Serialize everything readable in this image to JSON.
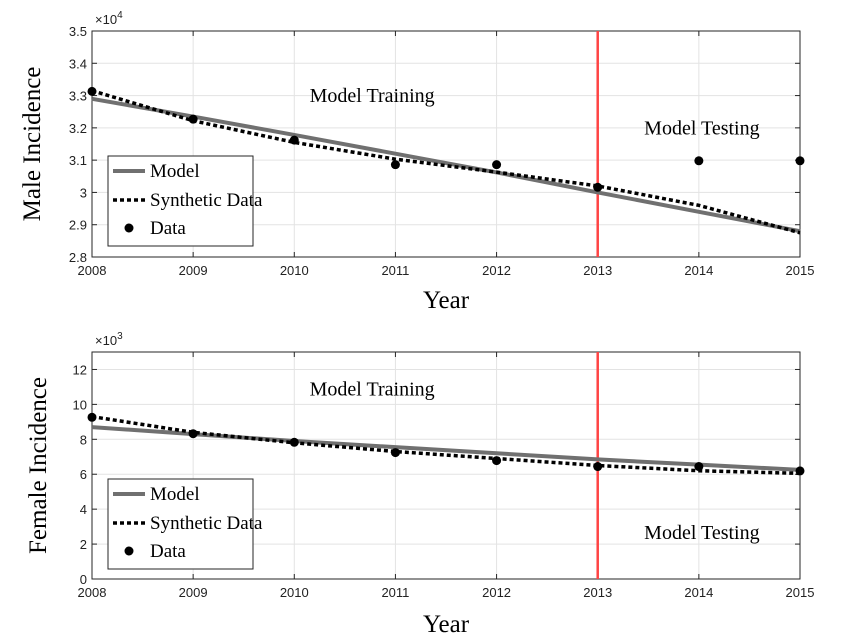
{
  "chart_data": [
    {
      "type": "line",
      "ylabel": "Male Incidence",
      "xlabel": "Year",
      "y_multiplier": "×10^4",
      "y_multiplier_base": "×10",
      "y_multiplier_exp": "4",
      "x": [
        2008,
        2009,
        2010,
        2011,
        2012,
        2013,
        2014,
        2015
      ],
      "xlim": [
        2008,
        2015
      ],
      "ylim": [
        2.8,
        3.5
      ],
      "yticks": [
        2.8,
        2.9,
        3,
        3.1,
        3.2,
        3.3,
        3.4,
        3.5
      ],
      "ytick_labels": [
        "2.8",
        "2.9",
        "3",
        "3.1",
        "3.2",
        "3.3",
        "3.4",
        "3.5"
      ],
      "xtick_labels": [
        "2008",
        "2009",
        "2010",
        "2011",
        "2012",
        "2013",
        "2014",
        "2015"
      ],
      "grid": true,
      "legend_position": "bottom-left",
      "series": [
        {
          "name": "Model",
          "style": "solid",
          "color": "#707070",
          "values": [
            3.29,
            3.235,
            3.178,
            3.12,
            3.062,
            3.0,
            2.94,
            2.88
          ]
        },
        {
          "name": "Synthetic Data",
          "style": "dotted",
          "color": "#000000",
          "values": [
            3.315,
            3.222,
            3.155,
            3.103,
            3.063,
            3.02,
            2.96,
            2.875
          ]
        },
        {
          "name": "Data",
          "style": "markers",
          "color": "#000000",
          "values": [
            3.313,
            3.227,
            3.162,
            3.086,
            3.086,
            3.016,
            3.098,
            3.098
          ]
        }
      ],
      "vline": {
        "x": 2013,
        "color": "#ff4444"
      },
      "annotations": [
        {
          "text": "Model Training",
          "x": 2010.77,
          "y": 3.28
        },
        {
          "text": "Model Testing",
          "x": 2014.03,
          "y": 3.18
        }
      ]
    },
    {
      "type": "line",
      "ylabel": "Female Incidence",
      "xlabel": "Year",
      "y_multiplier": "×10^3",
      "y_multiplier_base": "×10",
      "y_multiplier_exp": "3",
      "x": [
        2008,
        2009,
        2010,
        2011,
        2012,
        2013,
        2014,
        2015
      ],
      "xlim": [
        2008,
        2015
      ],
      "ylim": [
        0,
        13
      ],
      "yticks": [
        0,
        2,
        4,
        6,
        8,
        10,
        12
      ],
      "ytick_labels": [
        "0",
        "2",
        "4",
        "6",
        "8",
        "10",
        "12"
      ],
      "xtick_labels": [
        "2008",
        "2009",
        "2010",
        "2011",
        "2012",
        "2013",
        "2014",
        "2015"
      ],
      "grid": true,
      "legend_position": "bottom-left",
      "series": [
        {
          "name": "Model",
          "style": "solid",
          "color": "#707070",
          "values": [
            8.7,
            8.3,
            7.9,
            7.55,
            7.2,
            6.85,
            6.55,
            6.25
          ]
        },
        {
          "name": "Synthetic Data",
          "style": "dotted",
          "color": "#000000",
          "values": [
            9.3,
            8.4,
            7.8,
            7.3,
            6.9,
            6.5,
            6.2,
            6.05
          ]
        },
        {
          "name": "Data",
          "style": "markers",
          "color": "#000000",
          "values": [
            9.26,
            8.32,
            7.83,
            7.24,
            6.78,
            6.44,
            6.44,
            6.19
          ]
        }
      ],
      "vline": {
        "x": 2013,
        "color": "#ff4444"
      },
      "annotations": [
        {
          "text": "Model Training",
          "x": 2010.77,
          "y": 10.5
        },
        {
          "text": "Model Testing",
          "x": 2014.03,
          "y": 2.3
        }
      ]
    }
  ]
}
